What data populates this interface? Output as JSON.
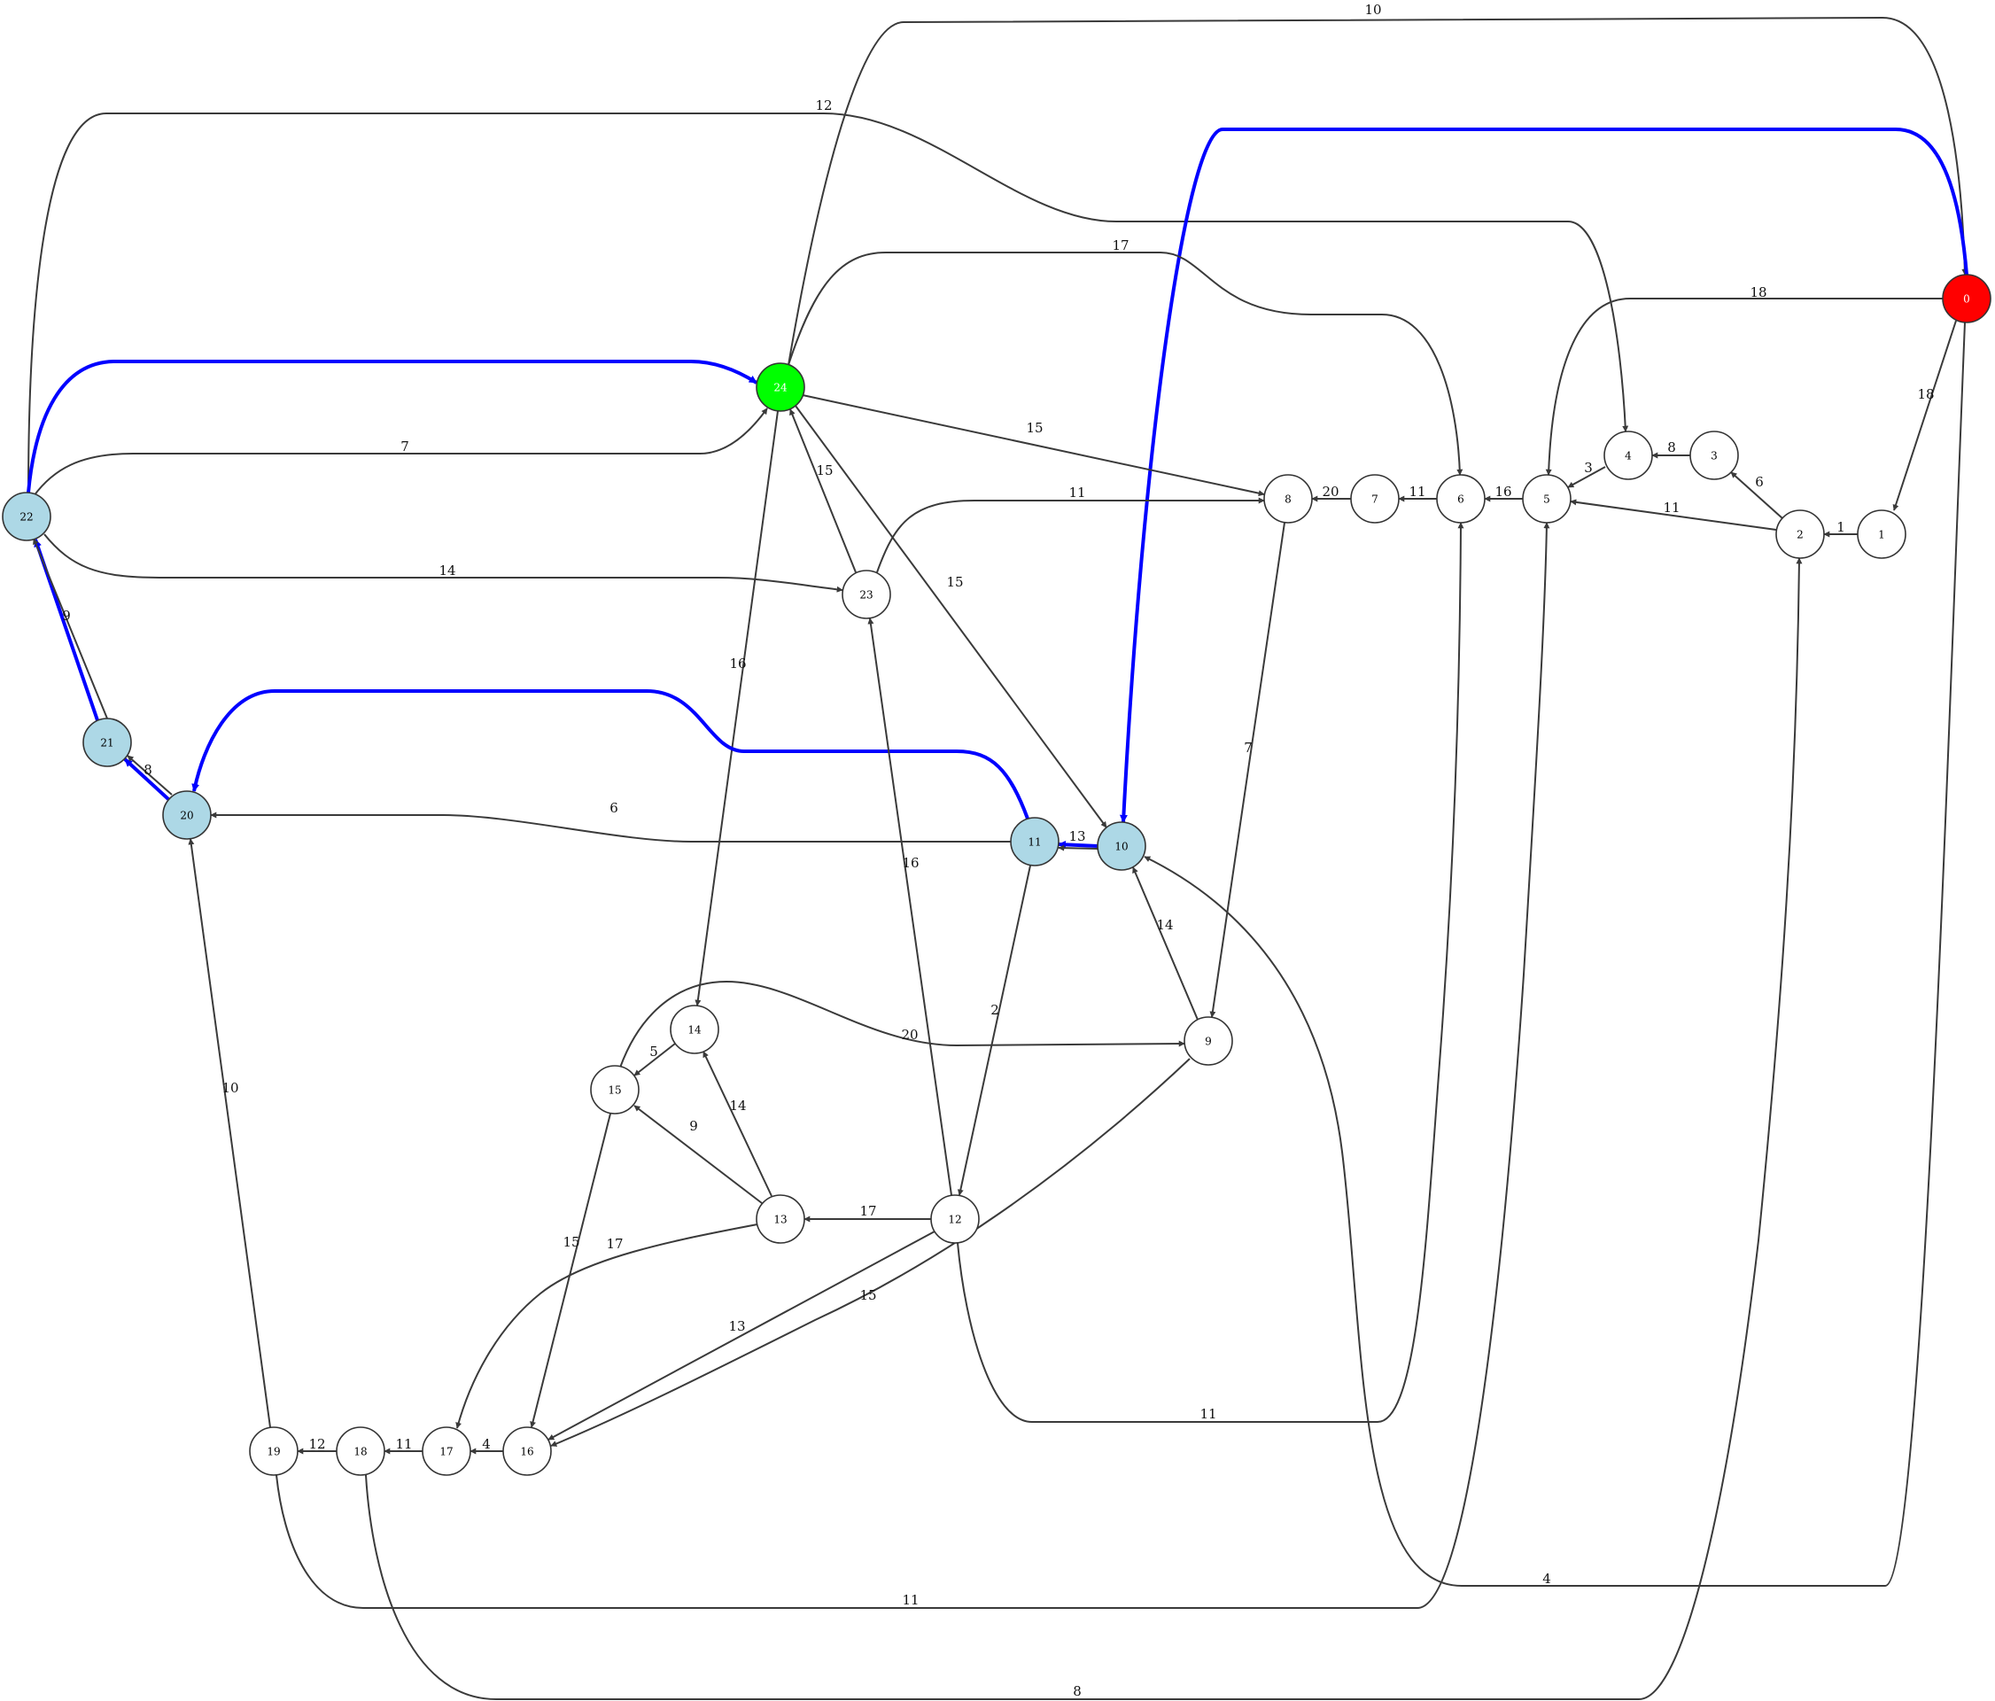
{
  "colors": {
    "default_fill": "#ffffff",
    "start_fill": "#ff0000",
    "end_fill": "#00ff00",
    "path_fill": "#add8e6",
    "edge": "#3a3a3a",
    "path_edge": "#0000ff"
  },
  "nodes": [
    {
      "id": "0",
      "label": "0",
      "role": "start"
    },
    {
      "id": "1",
      "label": "1",
      "role": "default"
    },
    {
      "id": "2",
      "label": "2",
      "role": "default"
    },
    {
      "id": "3",
      "label": "3",
      "role": "default"
    },
    {
      "id": "4",
      "label": "4",
      "role": "default"
    },
    {
      "id": "5",
      "label": "5",
      "role": "default"
    },
    {
      "id": "6",
      "label": "6",
      "role": "default"
    },
    {
      "id": "7",
      "label": "7",
      "role": "default"
    },
    {
      "id": "8",
      "label": "8",
      "role": "default"
    },
    {
      "id": "9",
      "label": "9",
      "role": "default"
    },
    {
      "id": "10",
      "label": "10",
      "role": "path"
    },
    {
      "id": "11",
      "label": "11",
      "role": "path"
    },
    {
      "id": "12",
      "label": "12",
      "role": "default"
    },
    {
      "id": "13",
      "label": "13",
      "role": "default"
    },
    {
      "id": "14",
      "label": "14",
      "role": "default"
    },
    {
      "id": "15",
      "label": "15",
      "role": "default"
    },
    {
      "id": "16",
      "label": "16",
      "role": "default"
    },
    {
      "id": "17",
      "label": "17",
      "role": "default"
    },
    {
      "id": "18",
      "label": "18",
      "role": "default"
    },
    {
      "id": "19",
      "label": "19",
      "role": "default"
    },
    {
      "id": "20",
      "label": "20",
      "role": "path"
    },
    {
      "id": "21",
      "label": "21",
      "role": "path"
    },
    {
      "id": "22",
      "label": "22",
      "role": "path"
    },
    {
      "id": "23",
      "label": "23",
      "role": "default"
    },
    {
      "id": "24",
      "label": "24",
      "role": "end"
    }
  ],
  "edges": [
    {
      "id": "e-24-0",
      "label": "10",
      "path": false
    },
    {
      "id": "e-22-4",
      "label": "12",
      "path": false
    },
    {
      "id": "e-0-10",
      "label": "",
      "path": true
    },
    {
      "id": "e-24-6",
      "label": "17",
      "path": false
    },
    {
      "id": "e-0-5",
      "label": "18",
      "path": false
    },
    {
      "id": "e-0-1",
      "label": "18",
      "path": false
    },
    {
      "id": "e-22-24-path",
      "label": "",
      "path": true
    },
    {
      "id": "e-22-24",
      "label": "7",
      "path": false
    },
    {
      "id": "e-24-8",
      "label": "15",
      "path": false
    },
    {
      "id": "e-3-4",
      "label": "8",
      "path": false
    },
    {
      "id": "e-4-5",
      "label": "3",
      "path": false
    },
    {
      "id": "e-2-3",
      "label": "6",
      "path": false
    },
    {
      "id": "e-1-2",
      "label": "1",
      "path": false
    },
    {
      "id": "e-2-5",
      "label": "11",
      "path": false
    },
    {
      "id": "e-5-6",
      "label": "16",
      "path": false
    },
    {
      "id": "e-6-7",
      "label": "11",
      "path": false
    },
    {
      "id": "e-7-8",
      "label": "20",
      "path": false
    },
    {
      "id": "e-23-8",
      "label": "11",
      "path": false
    },
    {
      "id": "e-23-24",
      "label": "15",
      "path": false
    },
    {
      "id": "e-22-23",
      "label": "14",
      "path": false
    },
    {
      "id": "e-24-10",
      "label": "15",
      "path": false
    },
    {
      "id": "e-24-14",
      "label": "16",
      "path": false
    },
    {
      "id": "e-21-22",
      "label": "9",
      "path": true
    },
    {
      "id": "e-21-22b",
      "label": "",
      "path": false
    },
    {
      "id": "e-20-21",
      "label": "8",
      "path": true
    },
    {
      "id": "e-20-21b",
      "label": "",
      "path": false
    },
    {
      "id": "e-11-20-path",
      "label": "",
      "path": true
    },
    {
      "id": "e-11-20",
      "label": "6",
      "path": false
    },
    {
      "id": "e-10-11",
      "label": "13",
      "path": true
    },
    {
      "id": "e-10-11b",
      "label": "",
      "path": false
    },
    {
      "id": "e-8-9",
      "label": "7",
      "path": false
    },
    {
      "id": "e-9-10",
      "label": "14",
      "path": false
    },
    {
      "id": "e-12-23",
      "label": "16",
      "path": false
    },
    {
      "id": "e-11-12",
      "label": "2",
      "path": false
    },
    {
      "id": "e-15-9",
      "label": "20",
      "path": false
    },
    {
      "id": "e-14-15",
      "label": "5",
      "path": false
    },
    {
      "id": "e-13-15",
      "label": "9",
      "path": false
    },
    {
      "id": "e-13-14",
      "label": "14",
      "path": false
    },
    {
      "id": "e-12-13",
      "label": "17",
      "path": false
    },
    {
      "id": "e-15-16",
      "label": "15",
      "path": false
    },
    {
      "id": "e-13-17",
      "label": "17",
      "path": false
    },
    {
      "id": "e-9-16",
      "label": "15",
      "path": false
    },
    {
      "id": "e-12-16",
      "label": "13",
      "path": false
    },
    {
      "id": "e-12-6",
      "label": "11",
      "path": false
    },
    {
      "id": "e-16-17",
      "label": "4",
      "path": false
    },
    {
      "id": "e-17-18",
      "label": "11",
      "path": false
    },
    {
      "id": "e-18-19",
      "label": "12",
      "path": false
    },
    {
      "id": "e-19-20",
      "label": "10",
      "path": false
    },
    {
      "id": "e-19-5",
      "label": "11",
      "path": false
    },
    {
      "id": "e-0-10-long",
      "label": "4",
      "path": false
    },
    {
      "id": "e-18-2",
      "label": "8",
      "path": false
    }
  ]
}
